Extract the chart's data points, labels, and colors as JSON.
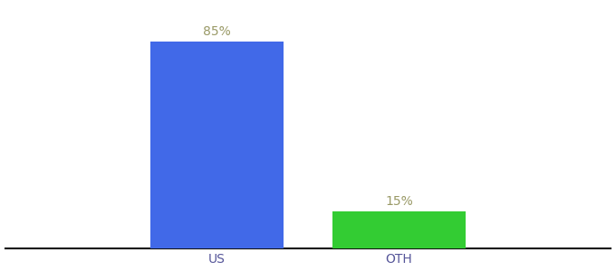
{
  "categories": [
    "US",
    "OTH"
  ],
  "values": [
    85,
    15
  ],
  "bar_colors": [
    "#4169e8",
    "#33cc33"
  ],
  "label_texts": [
    "85%",
    "15%"
  ],
  "label_color": "#999966",
  "ylim": [
    0,
    100
  ],
  "bar_width": 0.22,
  "background_color": "#ffffff",
  "label_fontsize": 10,
  "tick_fontsize": 10,
  "spine_color": "#111111",
  "bar_positions": [
    0.35,
    0.65
  ]
}
